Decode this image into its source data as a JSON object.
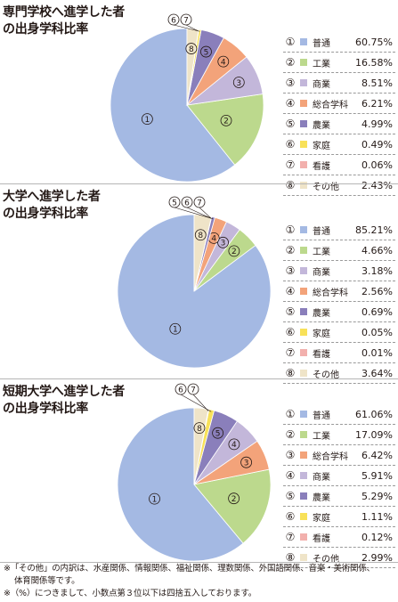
{
  "chart_data": [
    {
      "type": "pie",
      "title": "専門学校へ進学した者\nの出身学科比率",
      "slices": [
        {
          "num": "①",
          "label": "普通",
          "display": "60.75%",
          "value": 60.75,
          "color": "#a4b9e3"
        },
        {
          "num": "②",
          "label": "工業",
          "display": "16.58%",
          "value": 16.58,
          "color": "#bcd98d"
        },
        {
          "num": "③",
          "label": "商業",
          "display": "8.51%",
          "value": 8.51,
          "color": "#c3b7da"
        },
        {
          "num": "④",
          "label": "総合学科",
          "display": "6.21%",
          "value": 6.21,
          "color": "#f3a37a"
        },
        {
          "num": "⑤",
          "label": "農業",
          "display": "4.99%",
          "value": 4.99,
          "color": "#8a7fbb"
        },
        {
          "num": "⑥",
          "label": "家庭",
          "display": "0.49%",
          "value": 0.49,
          "color": "#f8e159"
        },
        {
          "num": "⑦",
          "label": "看護",
          "display": "0.06%",
          "value": 0.06,
          "color": "#f2b0ad"
        },
        {
          "num": "⑧",
          "label": "その他",
          "display": "2.43%",
          "value": 2.43,
          "color": "#efe4c8"
        }
      ]
    },
    {
      "type": "pie",
      "title": "大学へ進学した者\nの出身学科比率",
      "slices": [
        {
          "num": "①",
          "label": "普通",
          "display": "85.21%",
          "value": 85.21,
          "color": "#a4b9e3"
        },
        {
          "num": "②",
          "label": "工業",
          "display": "4.66%",
          "value": 4.66,
          "color": "#bcd98d"
        },
        {
          "num": "③",
          "label": "商業",
          "display": "3.18%",
          "value": 3.18,
          "color": "#c3b7da"
        },
        {
          "num": "④",
          "label": "総合学科",
          "display": "2.56%",
          "value": 2.56,
          "color": "#f3a37a"
        },
        {
          "num": "⑤",
          "label": "農業",
          "display": "0.69%",
          "value": 0.69,
          "color": "#8a7fbb"
        },
        {
          "num": "⑥",
          "label": "家庭",
          "display": "0.05%",
          "value": 0.05,
          "color": "#f8e159"
        },
        {
          "num": "⑦",
          "label": "看護",
          "display": "0.01%",
          "value": 0.01,
          "color": "#f2b0ad"
        },
        {
          "num": "⑧",
          "label": "その他",
          "display": "3.64%",
          "value": 3.64,
          "color": "#efe4c8"
        }
      ]
    },
    {
      "type": "pie",
      "title": "短期大学へ進学した者\nの出身学科比率",
      "slices": [
        {
          "num": "①",
          "label": "普通",
          "display": "61.06%",
          "value": 61.06,
          "color": "#a4b9e3"
        },
        {
          "num": "②",
          "label": "工業",
          "display": "17.09%",
          "value": 17.09,
          "color": "#bcd98d"
        },
        {
          "num": "③",
          "label": "総合学科",
          "display": "6.42%",
          "value": 6.42,
          "color": "#f3a37a"
        },
        {
          "num": "④",
          "label": "商業",
          "display": "5.91%",
          "value": 5.91,
          "color": "#c3b7da"
        },
        {
          "num": "⑤",
          "label": "農業",
          "display": "5.29%",
          "value": 5.29,
          "color": "#8a7fbb"
        },
        {
          "num": "⑥",
          "label": "家庭",
          "display": "1.11%",
          "value": 1.11,
          "color": "#f8e159"
        },
        {
          "num": "⑦",
          "label": "看護",
          "display": "0.12%",
          "value": 0.12,
          "color": "#f2b0ad"
        },
        {
          "num": "⑧",
          "label": "その他",
          "display": "2.99%",
          "value": 2.99,
          "color": "#efe4c8"
        }
      ]
    }
  ],
  "notes": {
    "line1": "※「その他」の内訳は、水産関係、情報関係、福祉関係、理数関係、外国語関係、音楽・美術関係、",
    "line2": "体育関係等です。",
    "line3": "※（%）につきまして、小数点第３位以下は四捨五入しております。"
  }
}
